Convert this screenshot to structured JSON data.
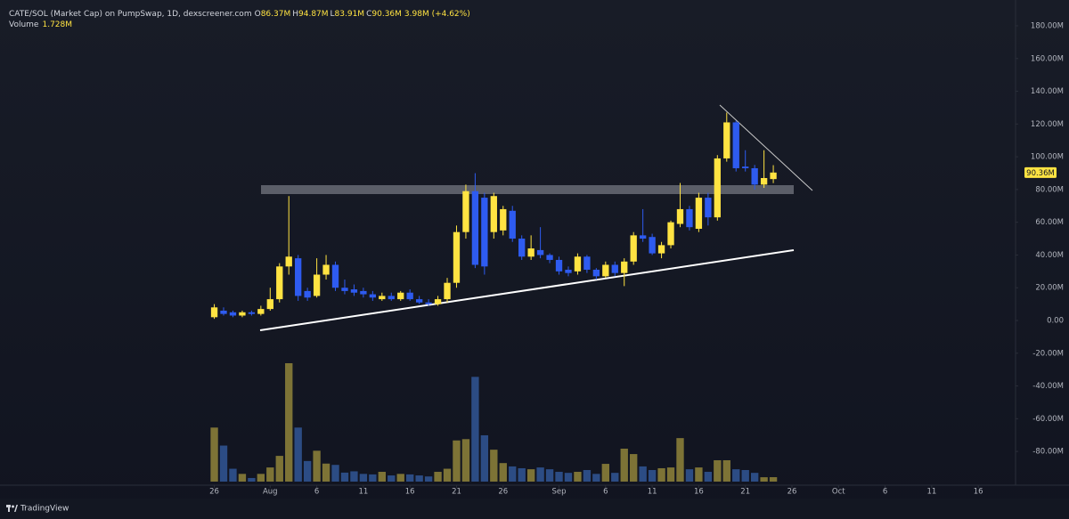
{
  "chart_data": {
    "type": "candlestick",
    "title": "CATE/SOL (Market Cap) on PumpSwap, 1D, dexscreener.com",
    "ohlc_header": [
      {
        "key": "O",
        "value": "86.37M"
      },
      {
        "key": "H",
        "value": "94.87M"
      },
      {
        "key": "L",
        "value": "83.91M"
      },
      {
        "key": "C",
        "value": "90.36M"
      }
    ],
    "change": "3.98M (+4.62%)",
    "volume_label": "Volume",
    "volume_value": "1.728M",
    "last_price_label": "90.36M",
    "brand": "TradingView",
    "x": [
      "07-26",
      "07-27",
      "07-28",
      "07-29",
      "07-30",
      "07-31",
      "08-01",
      "08-02",
      "08-03",
      "08-04",
      "08-05",
      "08-06",
      "08-07",
      "08-08",
      "08-09",
      "08-10",
      "08-11",
      "08-12",
      "08-13",
      "08-14",
      "08-15",
      "08-16",
      "08-17",
      "08-18",
      "08-19",
      "08-20",
      "08-21",
      "08-22",
      "08-23",
      "08-24",
      "08-25",
      "08-26",
      "08-27",
      "08-28",
      "08-29",
      "08-30",
      "08-31",
      "09-01",
      "09-02",
      "09-03",
      "09-04",
      "09-05",
      "09-06",
      "09-07",
      "09-08",
      "09-09",
      "09-10",
      "09-11",
      "09-12",
      "09-13",
      "09-14",
      "09-15",
      "09-16",
      "09-17",
      "09-18",
      "09-19",
      "09-20",
      "09-21",
      "09-22",
      "09-23",
      "09-24"
    ],
    "open": [
      2,
      6,
      5,
      3,
      5,
      4,
      7,
      13,
      33,
      38,
      18,
      15,
      28,
      34,
      20,
      19,
      18,
      16,
      13,
      15,
      13,
      17,
      13,
      11,
      10,
      13,
      23,
      54,
      79,
      75,
      54,
      55,
      67,
      50,
      39,
      43,
      40,
      37,
      31,
      30,
      39,
      31,
      27,
      34,
      29,
      36,
      52,
      51,
      41,
      46,
      59,
      68,
      56,
      75,
      63,
      99,
      121,
      94,
      93,
      83,
      86.37
    ],
    "high": [
      10,
      8,
      6,
      6,
      6,
      9,
      20,
      35,
      76,
      40,
      20,
      38,
      40,
      36,
      25,
      22,
      20,
      18,
      17,
      17,
      18,
      19,
      15,
      13,
      15,
      26,
      58,
      83,
      90,
      78,
      78,
      70,
      70,
      52,
      52,
      57,
      41,
      39,
      33,
      41,
      40,
      32,
      36,
      36,
      38,
      54,
      68,
      53,
      48,
      61,
      84,
      70,
      78,
      78,
      101,
      127,
      122,
      104,
      95,
      104,
      94.87
    ],
    "low": [
      1,
      3,
      2,
      2,
      3,
      3,
      6,
      11,
      28,
      12,
      12,
      14,
      25,
      18,
      16,
      15,
      14,
      12,
      12,
      12,
      12,
      12,
      10,
      9,
      9,
      11,
      20,
      50,
      32,
      28,
      50,
      52,
      48,
      37,
      37,
      38,
      35,
      28,
      27,
      28,
      29,
      25,
      26,
      27,
      21,
      34,
      48,
      40,
      38,
      44,
      57,
      55,
      54,
      58,
      61,
      97,
      91,
      91,
      80,
      81,
      83.91
    ],
    "close": [
      8,
      4,
      3,
      5,
      4,
      7,
      13,
      33,
      39,
      15,
      14,
      28,
      34,
      20,
      18,
      17,
      16,
      14,
      15,
      13,
      17,
      13,
      11,
      10,
      13,
      23,
      54,
      79,
      34,
      33,
      76,
      68,
      50,
      39,
      44,
      40,
      37,
      30,
      29,
      39,
      31,
      27,
      34,
      29,
      36,
      52,
      50,
      41,
      46,
      60,
      68,
      57,
      75,
      63,
      99,
      121,
      93,
      93,
      83,
      87,
      90.36
    ],
    "volume": [
      21,
      14,
      5,
      3,
      1.4,
      3,
      5.5,
      10,
      46,
      21,
      8,
      12,
      7,
      6.5,
      3.5,
      4,
      3,
      2.8,
      3.8,
      2.4,
      3,
      2.8,
      2.4,
      2,
      3.8,
      5,
      16,
      16.5,
      40.7,
      18,
      12.4,
      7.2,
      5.9,
      5.2,
      4.8,
      5.5,
      4.8,
      3.8,
      3.4,
      3.8,
      4.5,
      3,
      6.9,
      3.4,
      12.8,
      10.7,
      5.9,
      4.5,
      5.2,
      5.5,
      16.9,
      4.8,
      5.5,
      3.8,
      8.3,
      8.3,
      4.8,
      4.5,
      3.4,
      1.7,
      1.728
    ],
    "up_color": "#ffe342",
    "down_color": "#2e5bf0",
    "volume_up_color": "#7d7336",
    "volume_down_color": "#2c4c84",
    "grid": false,
    "xlim": [
      "07-03",
      "10-20"
    ],
    "xticks": [
      {
        "value": "07-26",
        "label": "26"
      },
      {
        "value": "08-01",
        "label": "Aug"
      },
      {
        "value": "08-06",
        "label": "6"
      },
      {
        "value": "08-11",
        "label": "11"
      },
      {
        "value": "08-16",
        "label": "16"
      },
      {
        "value": "08-21",
        "label": "21"
      },
      {
        "value": "08-26",
        "label": "26"
      },
      {
        "value": "09-01",
        "label": "Sep"
      },
      {
        "value": "09-06",
        "label": "6"
      },
      {
        "value": "09-11",
        "label": "11"
      },
      {
        "value": "09-16",
        "label": "16"
      },
      {
        "value": "09-21",
        "label": "21"
      },
      {
        "value": "09-26",
        "label": "26"
      },
      {
        "value": "10-01",
        "label": "Oct"
      },
      {
        "value": "10-06",
        "label": "6"
      },
      {
        "value": "10-11",
        "label": "11"
      },
      {
        "value": "10-16",
        "label": "16"
      }
    ],
    "ylim": [
      -100.6,
      187.6
    ],
    "yticks": [
      {
        "value": 180,
        "label": "180.00M"
      },
      {
        "value": 160,
        "label": "160.00M"
      },
      {
        "value": 140,
        "label": "140.00M"
      },
      {
        "value": 120,
        "label": "120.00M"
      },
      {
        "value": 100,
        "label": "100.00M"
      },
      {
        "value": 80,
        "label": "80.00M"
      },
      {
        "value": 60,
        "label": "60.00M"
      },
      {
        "value": 40,
        "label": "40.00M"
      },
      {
        "value": 20,
        "label": "20.00M"
      },
      {
        "value": 0,
        "label": "0.00"
      },
      {
        "value": -20,
        "label": "-20.00M"
      },
      {
        "value": -40,
        "label": "-40.00M"
      },
      {
        "value": -60,
        "label": "-60.00M"
      },
      {
        "value": -80,
        "label": "-80.00M"
      }
    ]
  }
}
